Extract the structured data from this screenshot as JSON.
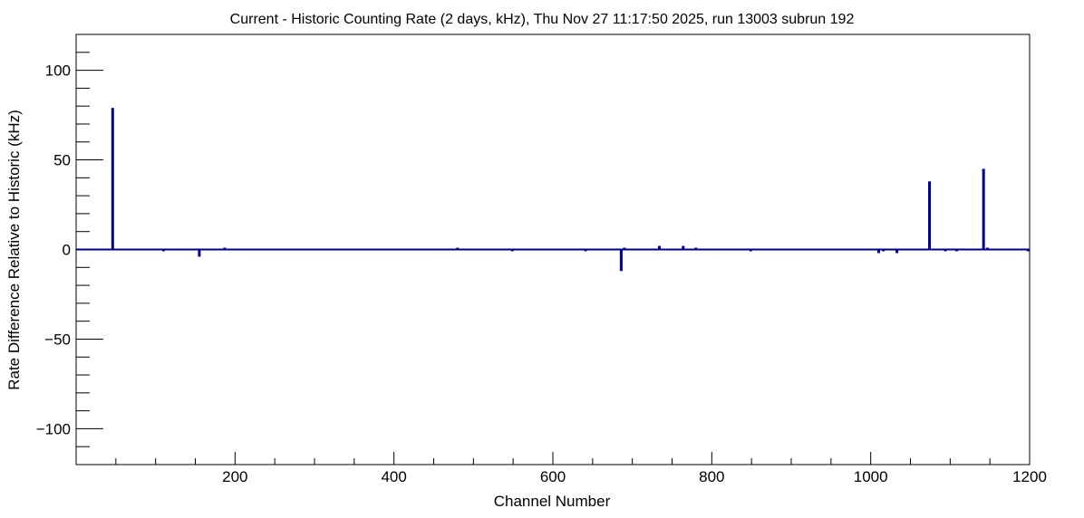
{
  "chart_data": {
    "type": "bar",
    "title": "Current - Historic Counting Rate (2 days, kHz), Thu Nov 27 11:17:50 2025, run 13003 subrun 192",
    "xlabel": "Channel Number",
    "ylabel": "Rate Difference Relative to Historic (kHz)",
    "xlim": [
      0,
      1200
    ],
    "ylim": [
      -120,
      120
    ],
    "x_ticks": [
      200,
      400,
      600,
      800,
      1000,
      1200
    ],
    "y_ticks": [
      -100,
      -50,
      0,
      50,
      100
    ],
    "x_tick_labels": [
      "200",
      "400",
      "600",
      "800",
      "1000",
      "1200"
    ],
    "y_tick_labels": [
      "−100",
      "−50",
      "0",
      "50",
      "100"
    ],
    "grid": false,
    "legend": "none",
    "color": "#00008b",
    "series": [
      {
        "x": [
          46,
          110,
          155,
          187,
          480,
          549,
          641,
          686,
          690,
          734,
          764,
          780,
          849,
          1010,
          1016,
          1033,
          1074,
          1094,
          1108,
          1142,
          1147,
          1198
        ],
        "values": [
          79,
          -1,
          -4,
          1,
          1,
          -1,
          -1,
          -12,
          1,
          2,
          2,
          1,
          -1,
          -2,
          -1,
          -2,
          38,
          -1,
          -1,
          45,
          1,
          -1
        ]
      }
    ]
  }
}
